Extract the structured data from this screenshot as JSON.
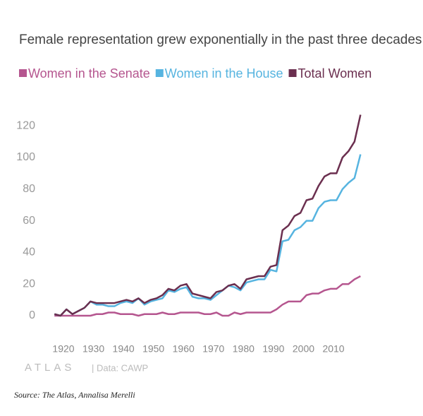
{
  "chart_data": {
    "type": "line",
    "title": "Female representation grew exponentially in the past three decades",
    "logo": "ATLAS",
    "data_note": "| Data: CAWP",
    "x": [
      1917,
      1919,
      1921,
      1923,
      1925,
      1927,
      1929,
      1931,
      1933,
      1935,
      1937,
      1939,
      1941,
      1943,
      1945,
      1947,
      1949,
      1951,
      1953,
      1955,
      1957,
      1959,
      1961,
      1963,
      1965,
      1967,
      1969,
      1971,
      1973,
      1975,
      1977,
      1979,
      1981,
      1983,
      1985,
      1987,
      1989,
      1991,
      1993,
      1995,
      1997,
      1999,
      2001,
      2003,
      2005,
      2007,
      2009,
      2011,
      2013,
      2015,
      2017,
      2019
    ],
    "series": [
      {
        "name": "Women in the Senate",
        "color": "#b5568f",
        "values": [
          0,
          0,
          0,
          0,
          0,
          0,
          0,
          1,
          1,
          2,
          2,
          1,
          1,
          1,
          0,
          1,
          1,
          1,
          2,
          1,
          1,
          2,
          2,
          2,
          2,
          1,
          1,
          2,
          0,
          0,
          2,
          1,
          2,
          2,
          2,
          2,
          2,
          4,
          7,
          9,
          9,
          9,
          13,
          14,
          14,
          16,
          17,
          17,
          20,
          20,
          23,
          25
        ]
      },
      {
        "name": "Women in the House",
        "color": "#56b4e0",
        "values": [
          1,
          0,
          4,
          1,
          3,
          5,
          9,
          7,
          7,
          6,
          6,
          8,
          9,
          8,
          11,
          7,
          9,
          10,
          11,
          16,
          15,
          17,
          18,
          12,
          11,
          11,
          10,
          13,
          16,
          19,
          18,
          16,
          21,
          22,
          23,
          23,
          29,
          28,
          47,
          48,
          54,
          56,
          60,
          60,
          68,
          72,
          73,
          73,
          80,
          84,
          87,
          102
        ]
      },
      {
        "name": "Total Women",
        "color": "#6b2f4f",
        "values": [
          1,
          0,
          4,
          1,
          3,
          5,
          9,
          8,
          8,
          8,
          8,
          9,
          10,
          9,
          11,
          8,
          10,
          11,
          13,
          17,
          16,
          19,
          20,
          14,
          13,
          12,
          11,
          15,
          16,
          19,
          20,
          17,
          23,
          24,
          25,
          25,
          31,
          32,
          54,
          57,
          63,
          65,
          73,
          74,
          82,
          88,
          90,
          90,
          100,
          104,
          110,
          127
        ]
      }
    ],
    "xlim": [
      1913,
      2022
    ],
    "xticks": [
      1920,
      1930,
      1940,
      1950,
      1960,
      1970,
      1980,
      1990,
      2000,
      2010
    ],
    "ylim": [
      -5,
      130
    ],
    "yticks": [
      0,
      20,
      40,
      60,
      80,
      100,
      120
    ]
  },
  "source": "Source: The Atlas, Annalisa Merelli"
}
